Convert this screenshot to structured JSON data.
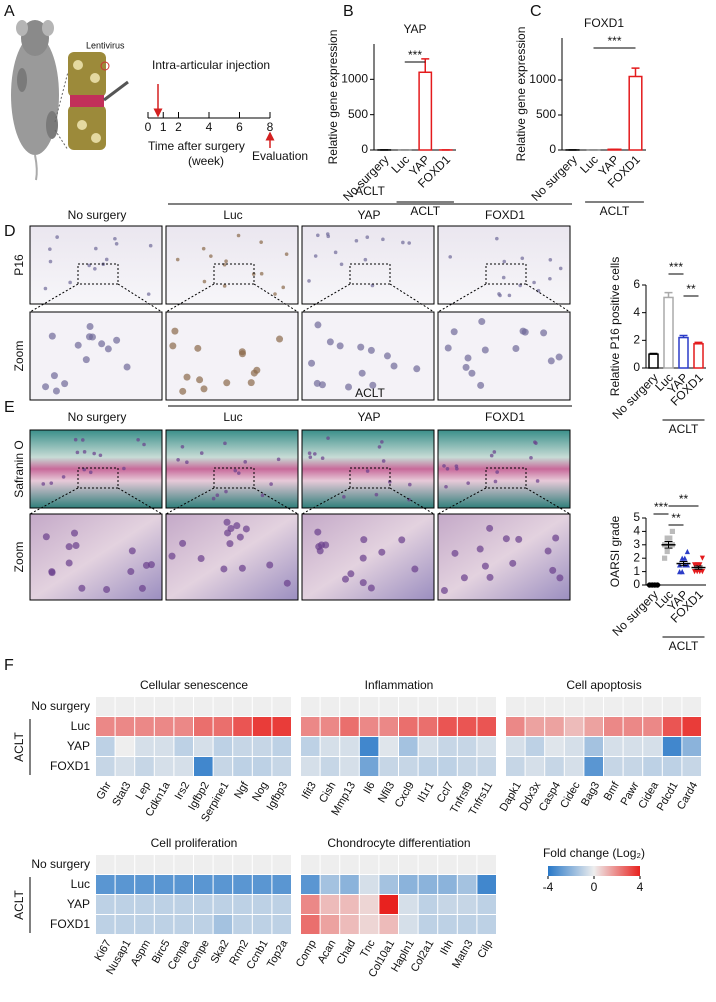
{
  "panel_labels": [
    "A",
    "B",
    "C",
    "D",
    "E",
    "F"
  ],
  "panel_a": {
    "vector": "Lentivirus",
    "injection": "Intra-articular injection",
    "timeline": [
      0,
      1,
      2,
      4,
      6,
      8
    ],
    "axis_label": "Time after surgery",
    "axis_unit": "(week)",
    "evaluation": "Evaluation"
  },
  "histology": [
    {
      "group": "ACLT",
      "columns": [
        "No surgery",
        "Luc",
        "YAP",
        "FOXD1"
      ],
      "row_labels": [
        "P16",
        "Zoom"
      ]
    },
    {
      "group": "ACLT",
      "columns": [
        "No surgery",
        "Luc",
        "YAP",
        "FOXD1"
      ],
      "row_labels": [
        "Safranin O",
        "Zoom"
      ]
    }
  ],
  "chart_data": [
    {
      "type": "bar",
      "title": "YAP",
      "y_label": "Relative gene expression",
      "categories": [
        "No surgery",
        "Luc",
        "YAP",
        "FOXD1"
      ],
      "values": [
        1,
        1,
        1100,
        1
      ],
      "errors": [
        0,
        0,
        190,
        0
      ],
      "colors": [
        "#000000",
        "#888888",
        "#e41a1c",
        "#e41a1c"
      ],
      "ylim": [
        0,
        1500
      ],
      "yticks": [
        0,
        500,
        1000
      ],
      "group_label": "ACLT",
      "annotations": [
        "***"
      ]
    },
    {
      "type": "bar",
      "title": "FOXD1",
      "y_label": "Relative gene expression",
      "categories": [
        "No surgery",
        "Luc",
        "YAP",
        "FOXD1"
      ],
      "values": [
        1,
        1,
        10,
        1050
      ],
      "errors": [
        0,
        0,
        0,
        120
      ],
      "colors": [
        "#000000",
        "#888888",
        "#e41a1c",
        "#e41a1c"
      ],
      "ylim": [
        0,
        1600
      ],
      "yticks": [
        0,
        500,
        1000
      ],
      "group_label": "ACLT",
      "annotations": [
        "***"
      ]
    },
    {
      "type": "bar",
      "y_label": "Relative P16 positive cells",
      "categories": [
        "No surgery",
        "Luc",
        "YAP",
        "FOXD1"
      ],
      "values": [
        1,
        5.1,
        2.2,
        1.75
      ],
      "errors": [
        0.05,
        0.35,
        0.15,
        0.1
      ],
      "colors": [
        "#000000",
        "#aaaaaa",
        "#2b3cc8",
        "#e41a1c"
      ],
      "ylim": [
        0,
        6
      ],
      "yticks": [
        0,
        2,
        4,
        6
      ],
      "group_label": "ACLT",
      "annotations": [
        "***",
        "**"
      ]
    },
    {
      "type": "dot",
      "y_label": "OARSI grade",
      "categories": [
        "No surgery",
        "Luc",
        "YAP",
        "FOXD1"
      ],
      "points": [
        [
          0,
          0,
          0,
          0,
          0,
          0,
          0,
          0
        ],
        [
          2,
          2.5,
          3,
          3,
          3,
          3.5,
          3.5,
          4
        ],
        [
          1,
          1,
          1.5,
          1.5,
          1.5,
          2,
          2,
          2.5
        ],
        [
          1,
          1,
          1,
          1,
          1.5,
          1.5,
          1.5,
          2
        ]
      ],
      "means": [
        0,
        3,
        1.6,
        1.3
      ],
      "errors": [
        0,
        0.25,
        0.15,
        0.12
      ],
      "colors": [
        "#000000",
        "#bbbbbb",
        "#2b3cc8",
        "#e41a1c"
      ],
      "markers": [
        "circle",
        "square",
        "triangle",
        "triangle-down"
      ],
      "ylim": [
        0,
        5
      ],
      "yticks": [
        0,
        1,
        2,
        3,
        4,
        5
      ],
      "group_label": "ACLT",
      "annotations": [
        "***",
        "**",
        "**"
      ]
    }
  ],
  "heatmap": {
    "row_labels": [
      "No surgery",
      "Luc",
      "YAP",
      "FOXD1"
    ],
    "group": "ACLT",
    "blocks": [
      {
        "title": "Cellular senescence",
        "genes": [
          "Ghr",
          "Stat3",
          "Lep",
          "Cdkn1a",
          "Irs2",
          "Igfbp2",
          "Serpine1",
          "Ngf",
          "Nog",
          "Igfbp3"
        ],
        "values": [
          [
            0,
            0,
            0,
            0,
            0,
            0,
            0,
            0,
            0,
            0
          ],
          [
            2,
            2,
            2,
            2,
            2,
            2.5,
            2.5,
            3,
            3.5,
            3.5
          ],
          [
            -1,
            0,
            -0.5,
            -0.5,
            -1,
            -0.5,
            -1,
            -0.8,
            -0.8,
            -1
          ],
          [
            -0.8,
            -0.5,
            -0.8,
            -0.5,
            -0.5,
            -3.5,
            -0.8,
            -1,
            -1,
            -0.8
          ]
        ]
      },
      {
        "title": "Inflammation",
        "genes": [
          "Ifit3",
          "Cish",
          "Mmp13",
          "Il6",
          "Nfil3",
          "Cxcl9",
          "Il1r1",
          "Ccl7",
          "Tnfrsf9",
          "Tnfrs11"
        ],
        "values": [
          [
            0,
            0,
            0,
            0,
            0,
            0,
            0,
            0,
            0,
            0
          ],
          [
            2,
            2,
            2.5,
            2,
            2,
            2.5,
            2.5,
            3,
            3,
            3
          ],
          [
            -1,
            -0.5,
            -0.5,
            -3.5,
            -0.3,
            -1.5,
            -0.5,
            -0.8,
            -0.8,
            -0.5
          ],
          [
            -0.5,
            -0.8,
            -0.5,
            -2.5,
            -0.8,
            -0.8,
            -1,
            -1,
            -0.8,
            -0.8
          ]
        ]
      },
      {
        "title": "Cell apoptosis",
        "genes": [
          "Dapk1",
          "Ddx3x",
          "Casp4",
          "Cidec",
          "Bag3",
          "Bmf",
          "Pawr",
          "Cidea",
          "Pdcd1",
          "Card4"
        ],
        "values": [
          [
            0,
            0,
            0,
            0,
            0,
            0,
            0,
            0,
            0,
            0
          ],
          [
            2,
            1.5,
            1.5,
            1,
            1.5,
            2,
            2,
            2,
            3,
            3.5
          ],
          [
            -0.5,
            -1,
            -0.3,
            -0.5,
            -1.5,
            -0.5,
            -0.5,
            -0.5,
            -3.5,
            -2
          ],
          [
            -0.8,
            -0.5,
            -0.8,
            -0.5,
            -3,
            -0.8,
            -0.8,
            -1,
            -1,
            -0.8
          ]
        ]
      },
      {
        "title": "Cell proliferation",
        "genes": [
          "Ki67",
          "Nusap1",
          "Aspm",
          "Birc5",
          "Cenpa",
          "Cenpe",
          "Ska2",
          "Rrm2",
          "Ccnb1",
          "Top2a"
        ],
        "values": [
          [
            0,
            0,
            0,
            0,
            0,
            0,
            0,
            0,
            0,
            0
          ],
          [
            -3,
            -3,
            -3,
            -3,
            -3,
            -3,
            -3,
            -3,
            -3,
            -3
          ],
          [
            -1,
            -1,
            -1,
            -1,
            -1,
            -1,
            -1,
            -1,
            -1,
            -1
          ],
          [
            -1,
            -1,
            -1,
            -1,
            -1,
            -1,
            -1.5,
            -1,
            -1,
            -1
          ]
        ]
      },
      {
        "title": "Chondrocyte differentiation",
        "genes": [
          "Comp",
          "Acan",
          "Chad",
          "Tnc",
          "Col10a1",
          "Hapln1",
          "Col2a1",
          "Ihh",
          "Matn3",
          "Cilp"
        ],
        "values": [
          [
            0,
            0,
            0,
            0,
            0,
            0,
            0,
            0,
            0,
            0
          ],
          [
            -3,
            -1.5,
            -2,
            -0.5,
            -1.5,
            -2,
            -2,
            -2,
            -1.5,
            -3.5
          ],
          [
            2,
            1,
            1,
            0.5,
            4,
            -0.5,
            -1,
            -0.8,
            -0.8,
            -1
          ],
          [
            2.5,
            1.5,
            1,
            0.5,
            1,
            -0.5,
            -1,
            -1,
            -1,
            -1
          ]
        ]
      }
    ],
    "colorbar": {
      "label": "Fold change (Log₂)",
      "range": [
        -4,
        4
      ],
      "ticks": [
        -4,
        0,
        4
      ],
      "colors": [
        "#2878c8",
        "#eeeeee",
        "#e8221f"
      ]
    }
  }
}
